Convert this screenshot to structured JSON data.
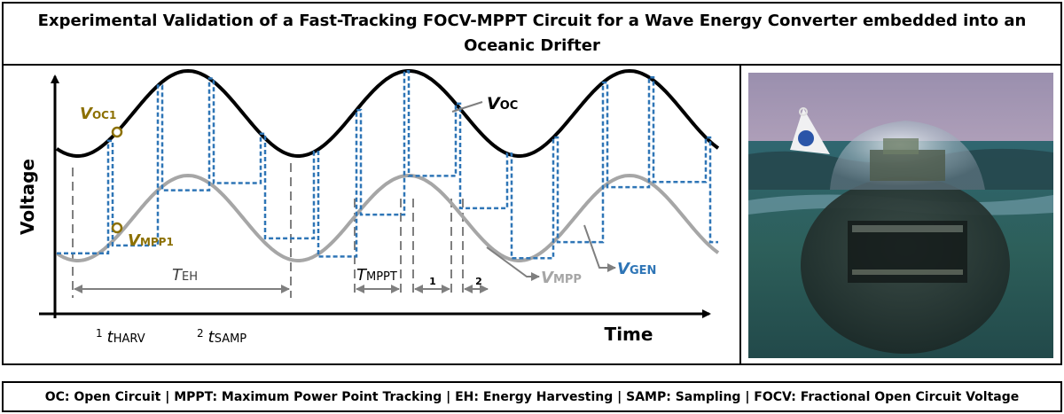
{
  "title": "Experimental Validation of a Fast-Tracking FOCV-MPPT Circuit for a Wave Energy Converter embedded into an Oceanic Drifter",
  "footer": "OC: Open Circuit | MPPT: Maximum Power Point Tracking | EH: Energy Harvesting | SAMP: Sampling | FOCV: Fractional Open Circuit Voltage",
  "diagram": {
    "y_axis_label": "Voltage",
    "x_axis_label": "Time",
    "voc": {
      "main": "V",
      "sub": "OC"
    },
    "voc1": {
      "main": "V",
      "sub": "OC1"
    },
    "vmpp1": {
      "main": "V",
      "sub": "MPP1"
    },
    "vmpp": {
      "main": "V",
      "sub": "MPP"
    },
    "vgen": {
      "main": "V",
      "sub": "GEN"
    },
    "teh": {
      "main": "T",
      "sub": "EH"
    },
    "tmppt": {
      "main": "T",
      "sub": "MPPT"
    },
    "interval_1": "1",
    "interval_2": "2",
    "legend_harv": {
      "num": "1",
      "main": "t",
      "sub": "HARV"
    },
    "legend_samp": {
      "num": "2",
      "main": "t",
      "sub": "SAMP"
    },
    "colors": {
      "voc": "#000000",
      "vmpp": "#a6a6a6",
      "vgen": "#2e75b6",
      "marker": "#8c7000",
      "dim": "#7f7f7f"
    }
  },
  "photo": {
    "description_icon": "oceanic-drifter-photo"
  }
}
